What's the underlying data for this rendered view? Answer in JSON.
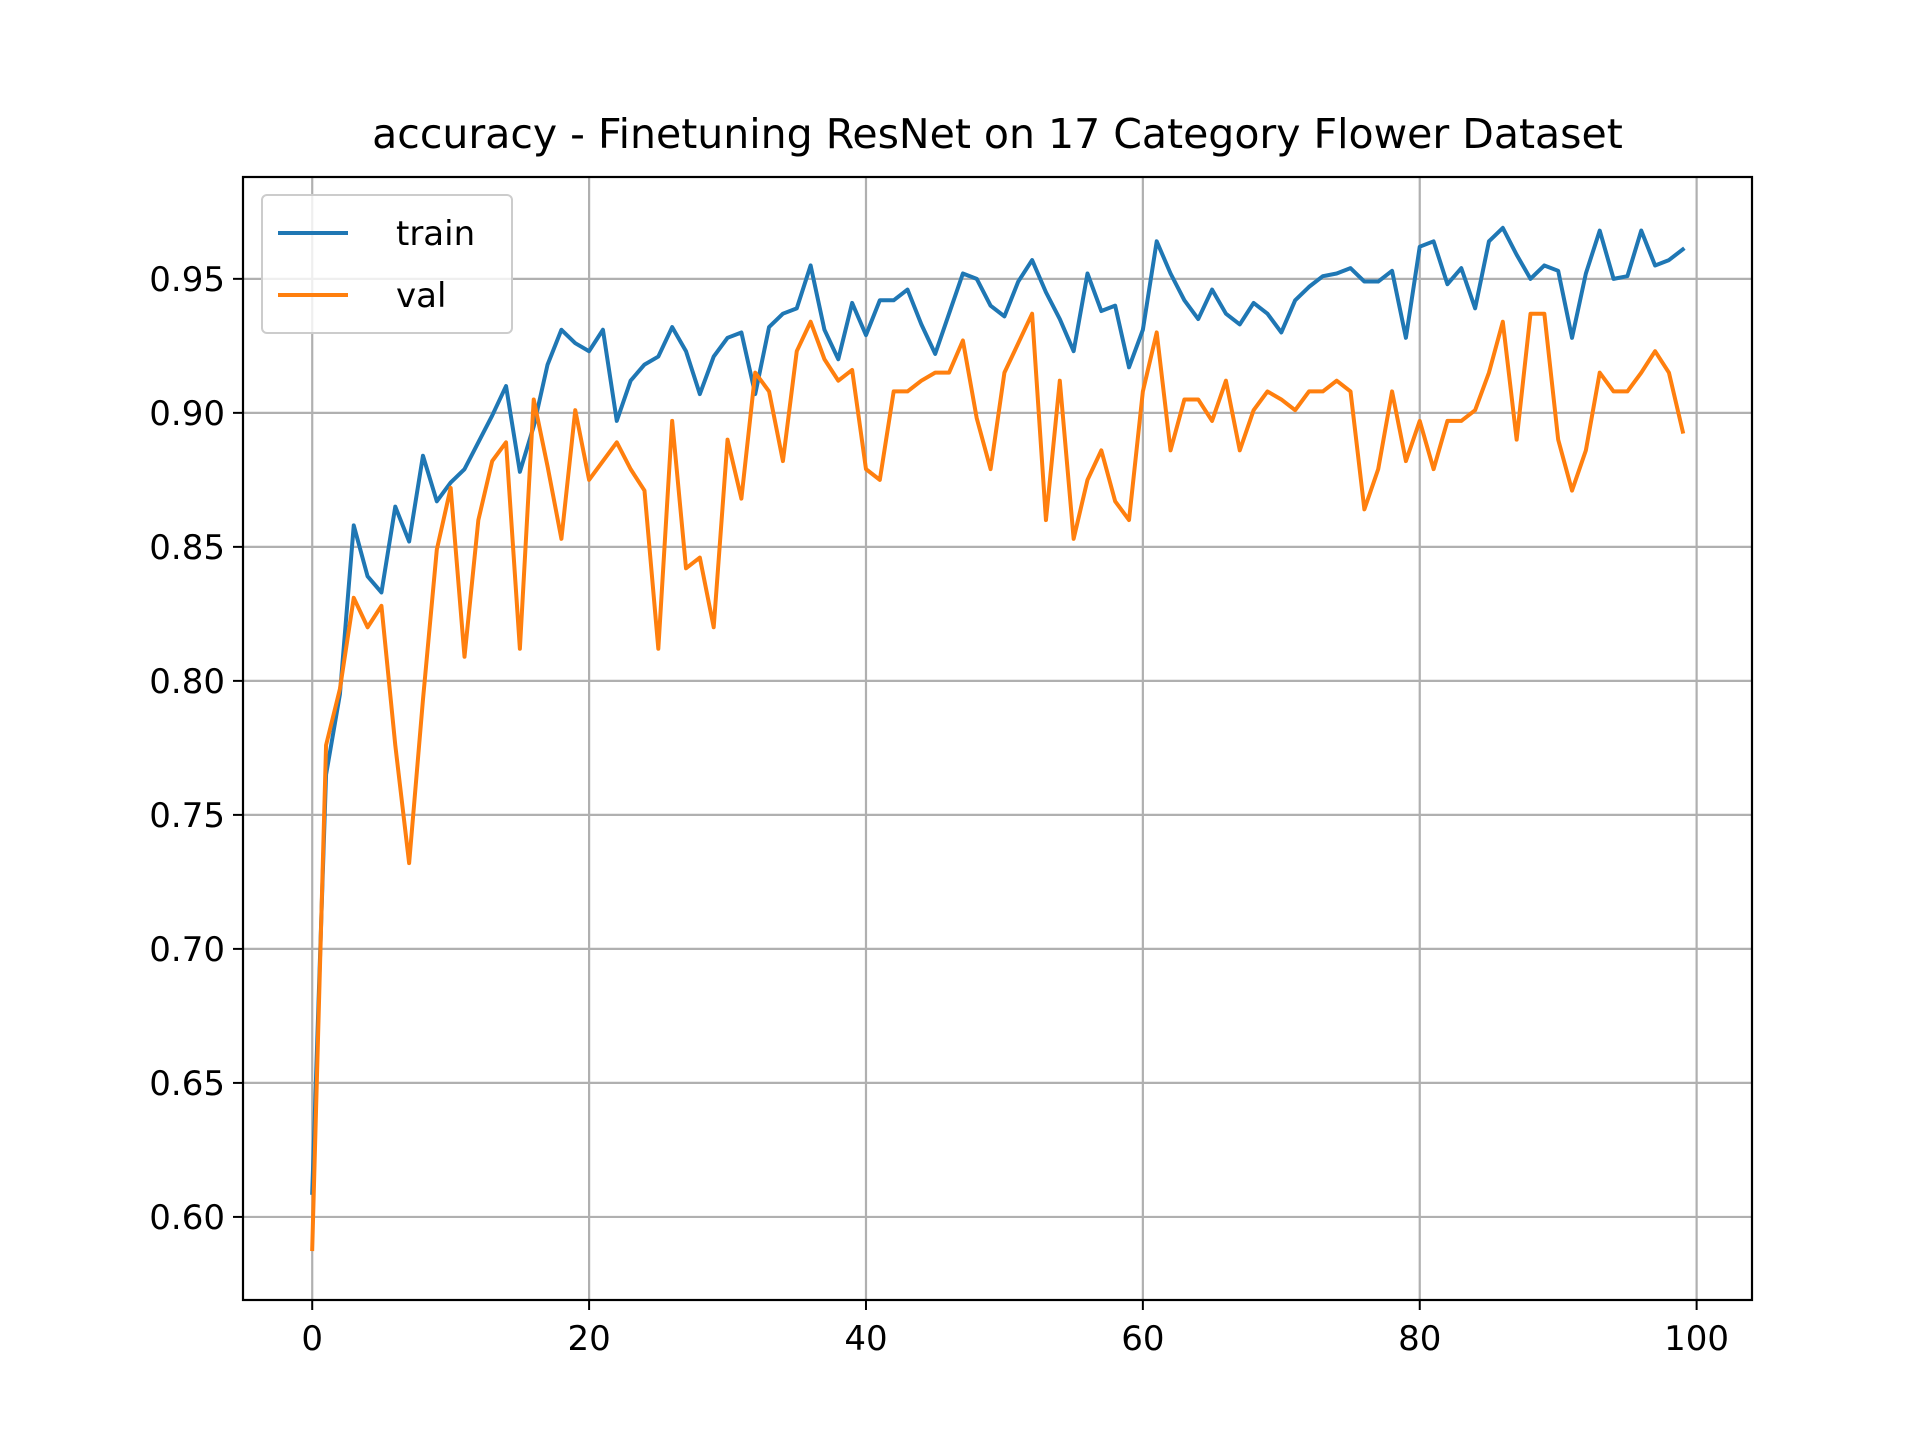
{
  "chart_data": {
    "type": "line",
    "title": "accuracy - Finetuning ResNet on 17 Category Flower Dataset",
    "xlabel": "",
    "ylabel": "",
    "xlim": [
      -5,
      104
    ],
    "ylim": [
      0.569,
      0.988
    ],
    "grid": true,
    "legend_position": "top-left",
    "x_ticks": [
      0,
      20,
      40,
      60,
      80,
      100
    ],
    "x_tick_labels": [
      "0",
      "20",
      "40",
      "60",
      "80",
      "100"
    ],
    "y_ticks": [
      0.6,
      0.65,
      0.7,
      0.75,
      0.8,
      0.85,
      0.9,
      0.95
    ],
    "y_tick_labels": [
      "0.60",
      "0.65",
      "0.70",
      "0.75",
      "0.80",
      "0.85",
      "0.90",
      "0.95"
    ],
    "series": [
      {
        "name": "train",
        "color": "#1f77b4",
        "x": [
          0,
          1,
          2,
          3,
          4,
          5,
          6,
          7,
          8,
          9,
          10,
          11,
          12,
          13,
          14,
          15,
          16,
          17,
          18,
          19,
          20,
          21,
          22,
          23,
          24,
          25,
          26,
          27,
          28,
          29,
          30,
          31,
          32,
          33,
          34,
          35,
          36,
          37,
          38,
          39,
          40,
          41,
          42,
          43,
          44,
          45,
          46,
          47,
          48,
          49,
          50,
          51,
          52,
          53,
          54,
          55,
          56,
          57,
          58,
          59,
          60,
          61,
          62,
          63,
          64,
          65,
          66,
          67,
          68,
          69,
          70,
          71,
          72,
          73,
          74,
          75,
          76,
          77,
          78,
          79,
          80,
          81,
          82,
          83,
          84,
          85,
          86,
          87,
          88,
          89,
          90,
          91,
          92,
          93,
          94,
          95,
          96,
          97,
          98,
          99
        ],
        "values": [
          0.609,
          0.765,
          0.795,
          0.858,
          0.839,
          0.833,
          0.865,
          0.852,
          0.884,
          0.867,
          0.874,
          0.879,
          0.889,
          0.899,
          0.91,
          0.878,
          0.895,
          0.918,
          0.931,
          0.926,
          0.923,
          0.931,
          0.897,
          0.912,
          0.918,
          0.921,
          0.932,
          0.923,
          0.907,
          0.921,
          0.928,
          0.93,
          0.907,
          0.932,
          0.937,
          0.939,
          0.955,
          0.931,
          0.92,
          0.941,
          0.929,
          0.942,
          0.942,
          0.946,
          0.933,
          0.922,
          0.937,
          0.952,
          0.95,
          0.94,
          0.936,
          0.949,
          0.957,
          0.945,
          0.935,
          0.923,
          0.952,
          0.938,
          0.94,
          0.917,
          0.931,
          0.964,
          0.952,
          0.942,
          0.935,
          0.946,
          0.937,
          0.933,
          0.941,
          0.937,
          0.93,
          0.942,
          0.947,
          0.951,
          0.952,
          0.954,
          0.949,
          0.949,
          0.953,
          0.928,
          0.962,
          0.964,
          0.948,
          0.954,
          0.939,
          0.964,
          0.969,
          0.959,
          0.95,
          0.955,
          0.953,
          0.928,
          0.952,
          0.968,
          0.95,
          0.951,
          0.968,
          0.955,
          0.957,
          0.961
        ]
      },
      {
        "name": "val",
        "color": "#ff7f0e",
        "x": [
          0,
          1,
          2,
          3,
          4,
          5,
          6,
          7,
          8,
          9,
          10,
          11,
          12,
          13,
          14,
          15,
          16,
          17,
          18,
          19,
          20,
          21,
          22,
          23,
          24,
          25,
          26,
          27,
          28,
          29,
          30,
          31,
          32,
          33,
          34,
          35,
          36,
          37,
          38,
          39,
          40,
          41,
          42,
          43,
          44,
          45,
          46,
          47,
          48,
          49,
          50,
          51,
          52,
          53,
          54,
          55,
          56,
          57,
          58,
          59,
          60,
          61,
          62,
          63,
          64,
          65,
          66,
          67,
          68,
          69,
          70,
          71,
          72,
          73,
          74,
          75,
          76,
          77,
          78,
          79,
          80,
          81,
          82,
          83,
          84,
          85,
          86,
          87,
          88,
          89,
          90,
          91,
          92,
          93,
          94,
          95,
          96,
          97,
          98,
          99
        ],
        "values": [
          0.588,
          0.776,
          0.797,
          0.831,
          0.82,
          0.828,
          0.776,
          0.732,
          0.793,
          0.849,
          0.872,
          0.809,
          0.86,
          0.882,
          0.889,
          0.812,
          0.905,
          0.88,
          0.853,
          0.901,
          0.875,
          0.882,
          0.889,
          0.879,
          0.871,
          0.812,
          0.897,
          0.842,
          0.846,
          0.82,
          0.89,
          0.868,
          0.915,
          0.908,
          0.882,
          0.923,
          0.934,
          0.92,
          0.912,
          0.916,
          0.879,
          0.875,
          0.908,
          0.908,
          0.912,
          0.915,
          0.915,
          0.927,
          0.898,
          0.879,
          0.915,
          0.926,
          0.937,
          0.86,
          0.912,
          0.853,
          0.875,
          0.886,
          0.867,
          0.86,
          0.908,
          0.93,
          0.886,
          0.905,
          0.905,
          0.897,
          0.912,
          0.886,
          0.901,
          0.908,
          0.905,
          0.901,
          0.908,
          0.908,
          0.912,
          0.908,
          0.864,
          0.879,
          0.908,
          0.882,
          0.897,
          0.879,
          0.897,
          0.897,
          0.901,
          0.915,
          0.934,
          0.89,
          0.937,
          0.937,
          0.89,
          0.871,
          0.886,
          0.915,
          0.908,
          0.908,
          0.915,
          0.923,
          0.915,
          0.893
        ]
      }
    ]
  }
}
